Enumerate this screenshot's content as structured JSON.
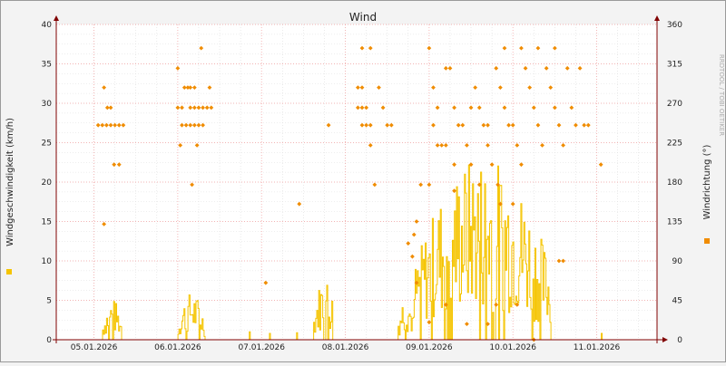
{
  "chart_data": {
    "type": "line",
    "title": "Wind",
    "watermark": "RRDTOOL / TOBI OETIKER",
    "ylabel_left": "Windgeschwindigkeit (km/h)",
    "ylabel_right": "Windrichtung (°)",
    "y_left": {
      "min": 0,
      "max": 40,
      "ticks": [
        0,
        5,
        10,
        15,
        20,
        25,
        30,
        35,
        40
      ]
    },
    "y_right": {
      "min": 0,
      "max": 360,
      "ticks": [
        0,
        45,
        90,
        135,
        180,
        225,
        270,
        315,
        360
      ]
    },
    "x_labels": [
      "05.01.2026",
      "06.01.2026",
      "07.01.2026",
      "08.01.2026",
      "09.01.2026",
      "10.01.2026",
      "11.01.2026"
    ],
    "x_range_days": [
      -0.45,
      6.72
    ],
    "grid": true,
    "colors": {
      "speed": "#f5c400",
      "direction": "#f08c00",
      "grid_major": "#f4a0a0",
      "grid_minor": "#dddddd",
      "plot_bg": "#ffffff",
      "frame": "#800000"
    },
    "series": [
      {
        "key": "speed",
        "axis": "left",
        "bursts": [
          {
            "start": 0.1,
            "end": 0.33,
            "peak": 5.2
          },
          {
            "start": 1.0,
            "end": 1.32,
            "peak": 6
          },
          {
            "start": 2.62,
            "end": 2.88,
            "peak": 8.2
          },
          {
            "start": 3.62,
            "end": 3.82,
            "peak": 6
          },
          {
            "start": 3.82,
            "end": 5.45,
            "peak": 23.5
          },
          {
            "start": 1.85,
            "end": 1.85,
            "peak": 1.0
          },
          {
            "start": 2.1,
            "end": 2.1,
            "peak": 0.8
          },
          {
            "start": 2.42,
            "end": 2.42,
            "peak": 0.9
          },
          {
            "start": 6.05,
            "end": 6.05,
            "peak": 0.8
          }
        ]
      },
      {
        "key": "direction",
        "axis": "right",
        "points": [
          [
            0.05,
            245
          ],
          [
            0.1,
            245
          ],
          [
            0.15,
            245
          ],
          [
            0.2,
            245
          ],
          [
            0.25,
            245
          ],
          [
            0.3,
            245
          ],
          [
            0.35,
            245
          ],
          [
            0.12,
            288
          ],
          [
            0.16,
            265
          ],
          [
            0.2,
            265
          ],
          [
            0.24,
            200
          ],
          [
            0.3,
            200
          ],
          [
            0.12,
            132
          ],
          [
            1.0,
            310
          ],
          [
            1.0,
            265
          ],
          [
            1.05,
            265
          ],
          [
            1.08,
            288
          ],
          [
            1.12,
            288
          ],
          [
            1.15,
            288
          ],
          [
            1.2,
            288
          ],
          [
            1.05,
            245
          ],
          [
            1.1,
            245
          ],
          [
            1.15,
            245
          ],
          [
            1.2,
            245
          ],
          [
            1.25,
            245
          ],
          [
            1.3,
            245
          ],
          [
            1.15,
            265
          ],
          [
            1.2,
            265
          ],
          [
            1.25,
            265
          ],
          [
            1.3,
            265
          ],
          [
            1.35,
            265
          ],
          [
            1.4,
            265
          ],
          [
            1.03,
            222
          ],
          [
            1.23,
            222
          ],
          [
            1.38,
            288
          ],
          [
            1.28,
            333
          ],
          [
            1.17,
            177
          ],
          [
            2.05,
            65
          ],
          [
            2.45,
            155
          ],
          [
            2.8,
            245
          ],
          [
            3.2,
            333
          ],
          [
            3.3,
            333
          ],
          [
            3.15,
            288
          ],
          [
            3.2,
            288
          ],
          [
            3.15,
            265
          ],
          [
            3.2,
            265
          ],
          [
            3.25,
            265
          ],
          [
            3.2,
            245
          ],
          [
            3.25,
            245
          ],
          [
            3.3,
            245
          ],
          [
            3.45,
            265
          ],
          [
            3.5,
            245
          ],
          [
            3.4,
            288
          ],
          [
            3.55,
            245
          ],
          [
            3.3,
            222
          ],
          [
            3.35,
            177
          ],
          [
            4.0,
            333
          ],
          [
            4.05,
            288
          ],
          [
            4.1,
            265
          ],
          [
            4.05,
            245
          ],
          [
            4.1,
            222
          ],
          [
            4.15,
            222
          ],
          [
            4.2,
            222
          ],
          [
            4.2,
            310
          ],
          [
            4.25,
            310
          ],
          [
            4.3,
            265
          ],
          [
            4.35,
            245
          ],
          [
            4.4,
            245
          ],
          [
            4.45,
            222
          ],
          [
            4.5,
            265
          ],
          [
            4.55,
            288
          ],
          [
            4.6,
            265
          ],
          [
            4.65,
            245
          ],
          [
            4.7,
            222
          ],
          [
            4.75,
            200
          ],
          [
            4.8,
            310
          ],
          [
            4.85,
            288
          ],
          [
            4.9,
            265
          ],
          [
            4.95,
            245
          ],
          [
            5.0,
            245
          ],
          [
            5.05,
            222
          ],
          [
            5.1,
            200
          ],
          [
            5.15,
            310
          ],
          [
            5.2,
            288
          ],
          [
            5.25,
            265
          ],
          [
            5.3,
            245
          ],
          [
            5.35,
            222
          ],
          [
            5.4,
            310
          ],
          [
            5.45,
            288
          ],
          [
            5.5,
            265
          ],
          [
            5.55,
            245
          ],
          [
            5.6,
            222
          ],
          [
            5.65,
            310
          ],
          [
            5.7,
            265
          ],
          [
            5.75,
            245
          ],
          [
            5.8,
            310
          ],
          [
            5.85,
            245
          ],
          [
            4.3,
            200
          ],
          [
            4.5,
            200
          ],
          [
            4.7,
            245
          ],
          [
            4.9,
            333
          ],
          [
            5.1,
            333
          ],
          [
            5.3,
            333
          ],
          [
            5.5,
            333
          ],
          [
            6.05,
            200
          ],
          [
            5.9,
            245
          ],
          [
            3.75,
            110
          ],
          [
            3.8,
            95
          ],
          [
            3.85,
            65
          ],
          [
            4.0,
            20
          ],
          [
            4.2,
            40
          ],
          [
            4.45,
            18
          ],
          [
            4.7,
            18
          ],
          [
            4.8,
            40
          ],
          [
            5.05,
            40
          ],
          [
            5.25,
            0
          ],
          [
            5.55,
            90
          ],
          [
            5.6,
            90
          ],
          [
            3.82,
            120
          ],
          [
            3.85,
            135
          ],
          [
            3.9,
            177
          ],
          [
            4.0,
            177
          ],
          [
            4.3,
            170
          ],
          [
            4.6,
            177
          ],
          [
            4.82,
            177
          ],
          [
            4.85,
            155
          ],
          [
            5.0,
            155
          ]
        ]
      }
    ],
    "legend": [
      {
        "key": "speed",
        "position": "left"
      },
      {
        "key": "direction",
        "position": "right"
      }
    ]
  }
}
